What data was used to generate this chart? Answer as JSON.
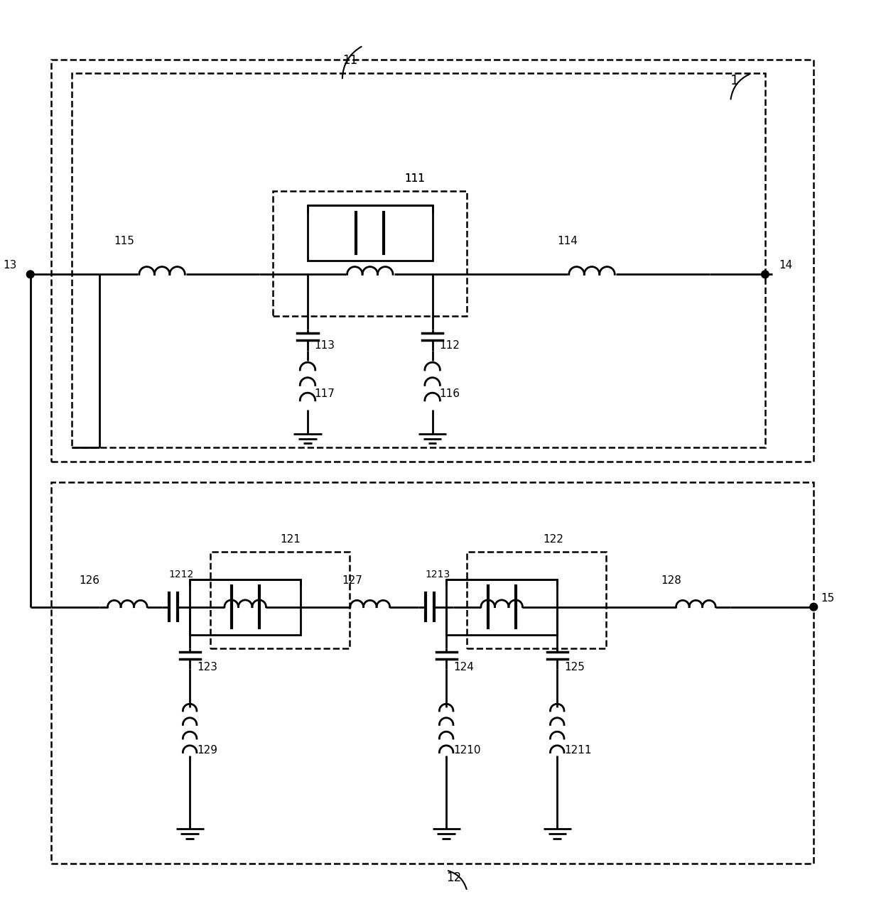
{
  "fig_width": 12.4,
  "fig_height": 12.8,
  "bg_color": "#ffffff",
  "line_color": "#000000",
  "line_width": 2.0,
  "dashed_lw": 1.8
}
